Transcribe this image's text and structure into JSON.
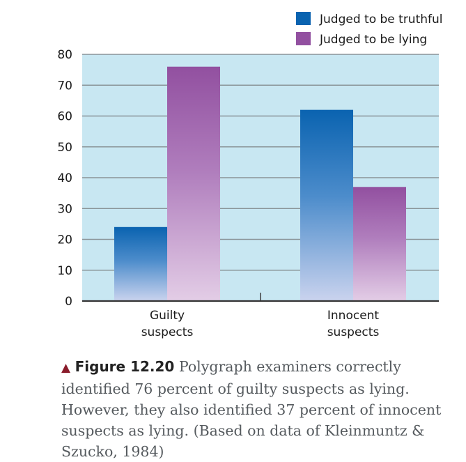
{
  "chart_data": {
    "type": "bar",
    "categories": [
      {
        "line1": "Guilty",
        "line2": "suspects"
      },
      {
        "line1": "Innocent",
        "line2": "suspects"
      }
    ],
    "series": [
      {
        "name": "Judged to be truthful",
        "values": [
          24,
          62
        ],
        "color": "#0a63b0"
      },
      {
        "name": "Judged to be lying",
        "values": [
          76,
          37
        ],
        "color": "#9250a0"
      }
    ],
    "yticks": [
      0,
      10,
      20,
      30,
      40,
      50,
      60,
      70,
      80
    ],
    "ylim": [
      0,
      80
    ],
    "grid": true,
    "legend_position": "top-right",
    "background_color": "#c8e7f2"
  },
  "caption": {
    "marker": "▲",
    "figure_label": "Figure 12.20",
    "text": "Polygraph examiners correctly identified 76 percent of guilty suspects as lying. However, they also identified 37 percent of innocent suspects as lying. (Based on data of Kleinmuntz & Szucko, 1984)"
  }
}
